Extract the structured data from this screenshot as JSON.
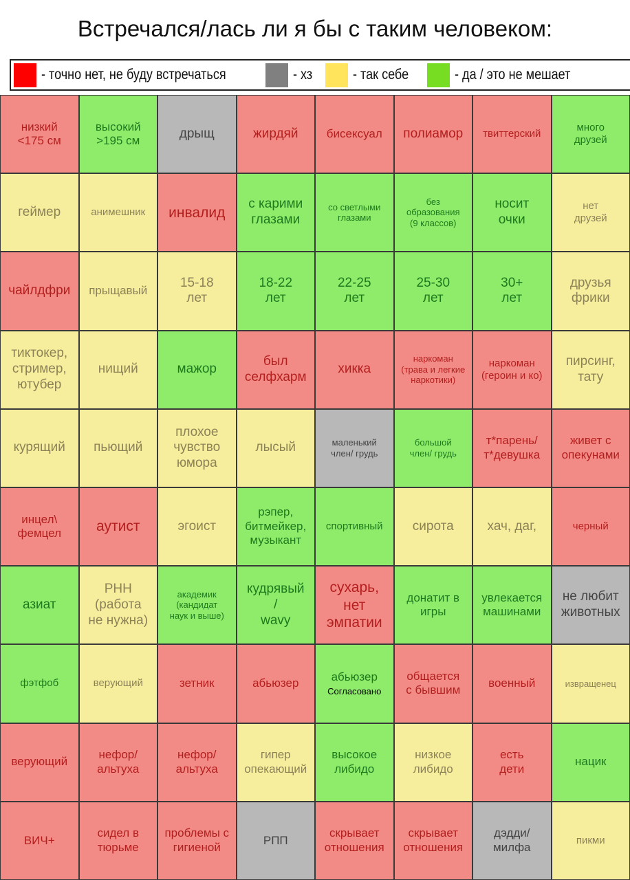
{
  "title": "Встречался/лась ли я бы с таким человеком:",
  "legend": [
    {
      "label": "- точно нет, не буду встречаться",
      "color": "#ff0000"
    },
    {
      "label": "- хз",
      "color": "#808080"
    },
    {
      "label": "- так себе",
      "color": "#ffe45c"
    },
    {
      "label": "- да / это не мешает",
      "color": "#77dd22"
    }
  ],
  "colors": {
    "red": "#f28b86",
    "green": "#8fec6a",
    "yellow": "#f6ee9c",
    "gray": "#b8b8b8"
  },
  "cells": [
    {
      "text": "низкий\n<175 см",
      "color": "red",
      "size": "m"
    },
    {
      "text": "высокий\n>195 см",
      "color": "green",
      "size": "m"
    },
    {
      "text": "дрыщ",
      "color": "gray",
      "size": "l"
    },
    {
      "text": "жирдяй",
      "color": "red",
      "size": "l"
    },
    {
      "text": "бисексуал",
      "color": "red",
      "size": "m"
    },
    {
      "text": "полиамор",
      "color": "red",
      "size": "l"
    },
    {
      "text": "твиттерский",
      "color": "red",
      "size": "s"
    },
    {
      "text": "много\nдрузей",
      "color": "green",
      "size": "s"
    },
    {
      "text": "геймер",
      "color": "yellow",
      "size": "l"
    },
    {
      "text": "анимешник",
      "color": "yellow",
      "size": "s"
    },
    {
      "text": "инвалид",
      "color": "red",
      "size": "xl"
    },
    {
      "text": "с карими\nглазами",
      "color": "green",
      "size": "l"
    },
    {
      "text": "со светлыми\nглазами",
      "color": "green",
      "size": "xs"
    },
    {
      "text": "без\nобразования\n(9 классов)",
      "color": "green",
      "size": "xs"
    },
    {
      "text": "носит\nочки",
      "color": "green",
      "size": "l"
    },
    {
      "text": "нет\nдрузей",
      "color": "yellow",
      "size": "s"
    },
    {
      "text": "чайлдфри",
      "color": "red",
      "size": "l"
    },
    {
      "text": "прыщавый",
      "color": "yellow",
      "size": "m"
    },
    {
      "text": "15-18\nлет",
      "color": "yellow",
      "size": "l"
    },
    {
      "text": "18-22\nлет",
      "color": "green",
      "size": "l"
    },
    {
      "text": "22-25\nлет",
      "color": "green",
      "size": "l"
    },
    {
      "text": "25-30\nлет",
      "color": "green",
      "size": "l"
    },
    {
      "text": "30+\nлет",
      "color": "green",
      "size": "l"
    },
    {
      "text": "друзья\nфрики",
      "color": "yellow",
      "size": "l"
    },
    {
      "text": "тиктокер,\nстример,\nютубер",
      "color": "yellow",
      "size": "l"
    },
    {
      "text": "нищий",
      "color": "yellow",
      "size": "l"
    },
    {
      "text": "мажор",
      "color": "green",
      "size": "l"
    },
    {
      "text": "был\nселфхарм",
      "color": "red",
      "size": "l"
    },
    {
      "text": "хикка",
      "color": "red",
      "size": "l"
    },
    {
      "text": "наркоман\n(трава и легкие\nнаркотики)",
      "color": "red",
      "size": "xs"
    },
    {
      "text": "наркоман\n(героин и ко)",
      "color": "red",
      "size": "s"
    },
    {
      "text": "пирсинг,\nтату",
      "color": "yellow",
      "size": "l"
    },
    {
      "text": "курящий",
      "color": "yellow",
      "size": "l"
    },
    {
      "text": "пьющий",
      "color": "yellow",
      "size": "l"
    },
    {
      "text": "плохое\nчувство\nюмора",
      "color": "yellow",
      "size": "l"
    },
    {
      "text": "лысый",
      "color": "yellow",
      "size": "l"
    },
    {
      "text": "маленький\nчлен/ грудь",
      "color": "gray",
      "size": "xs"
    },
    {
      "text": "большой\nчлен/ грудь",
      "color": "green",
      "size": "xs"
    },
    {
      "text": "т*парень/\nт*девушка",
      "color": "red",
      "size": "m"
    },
    {
      "text": "живет с\nопекунами",
      "color": "red",
      "size": "m"
    },
    {
      "text": "инцел\\\nфемцел",
      "color": "red",
      "size": "m"
    },
    {
      "text": "аутист",
      "color": "red",
      "size": "xl"
    },
    {
      "text": "эгоист",
      "color": "yellow",
      "size": "l"
    },
    {
      "text": "рэпер,\nбитмейкер,\nмузыкант",
      "color": "green",
      "size": "m"
    },
    {
      "text": "спортивный",
      "color": "green",
      "size": "s"
    },
    {
      "text": "сирота",
      "color": "yellow",
      "size": "l"
    },
    {
      "text": "хач, даг,",
      "color": "yellow",
      "size": "l"
    },
    {
      "text": "черный",
      "color": "red",
      "size": "s"
    },
    {
      "text": "азиат",
      "color": "green",
      "size": "l"
    },
    {
      "text": "РНН\n(работа\nне нужна)",
      "color": "yellow",
      "size": "l"
    },
    {
      "text": "академик\n(кандидат\nнаук и выше)",
      "color": "green",
      "size": "xs"
    },
    {
      "text": "кудрявый\n/\nwavy",
      "color": "green",
      "size": "l"
    },
    {
      "text": "сухарь,\nнет\nэмпатии",
      "color": "red",
      "size": "xl"
    },
    {
      "text": "донатит в\nигры",
      "color": "green",
      "size": "m"
    },
    {
      "text": "увлекается\nмашинами",
      "color": "green",
      "size": "m"
    },
    {
      "text": "не любит\nживотных",
      "color": "gray",
      "size": "l"
    },
    {
      "text": "фэтфоб",
      "color": "green",
      "size": "s"
    },
    {
      "text": "верующий",
      "color": "yellow",
      "size": "s"
    },
    {
      "text": "зетник",
      "color": "red",
      "size": "m"
    },
    {
      "text": "абьюзер",
      "color": "red",
      "size": "m"
    },
    {
      "text": "абьюзер",
      "note": "Согласовано",
      "color": "green",
      "size": "m"
    },
    {
      "text": "общается\nс бывшим",
      "color": "red",
      "size": "m"
    },
    {
      "text": "военный",
      "color": "red",
      "size": "m"
    },
    {
      "text": "извращенец",
      "color": "yellow",
      "size": "xs"
    },
    {
      "text": "верующий",
      "color": "red",
      "size": "m"
    },
    {
      "text": "нефор/\nальтуха",
      "color": "red",
      "size": "m"
    },
    {
      "text": "нефор/\nальтуха",
      "color": "red",
      "size": "m"
    },
    {
      "text": "гипер\nопекающий",
      "color": "yellow",
      "size": "m"
    },
    {
      "text": "высокое\nлибидо",
      "color": "green",
      "size": "m"
    },
    {
      "text": "низкое\nлибидо",
      "color": "yellow",
      "size": "m"
    },
    {
      "text": "есть\nдети",
      "color": "red",
      "size": "m"
    },
    {
      "text": "нацик",
      "color": "green",
      "size": "m"
    },
    {
      "text": "ВИЧ+",
      "color": "red",
      "size": "m"
    },
    {
      "text": "сидел в\nтюрьме",
      "color": "red",
      "size": "m"
    },
    {
      "text": "проблемы с\nгигиеной",
      "color": "red",
      "size": "m"
    },
    {
      "text": "РПП",
      "color": "gray",
      "size": "m"
    },
    {
      "text": "скрывает\nотношения",
      "color": "red",
      "size": "m"
    },
    {
      "text": "скрывает\nотношения",
      "color": "red",
      "size": "m"
    },
    {
      "text": "дэдди/\nмилфа",
      "color": "gray",
      "size": "m"
    },
    {
      "text": "пикми",
      "color": "yellow",
      "size": "s"
    }
  ]
}
